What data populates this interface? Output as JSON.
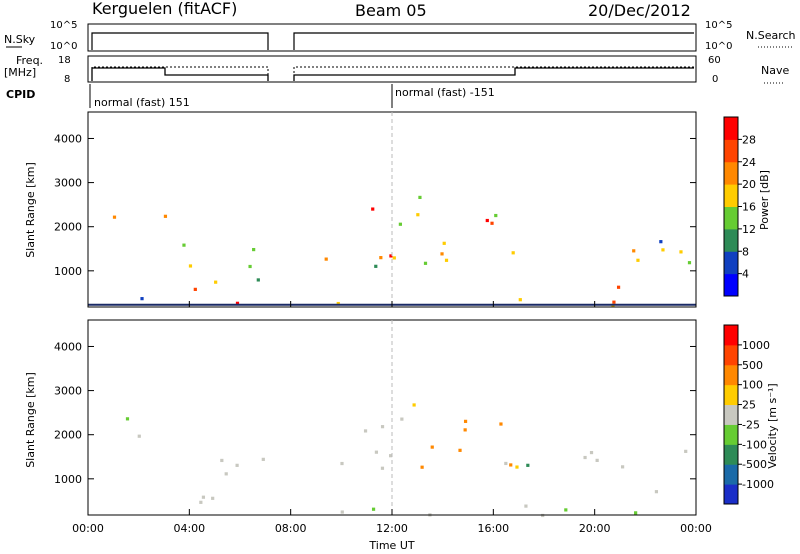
{
  "header": {
    "station": "Kerguelen (fitACF)",
    "beam": "Beam 05",
    "date": "20/Dec/2012"
  },
  "status_panels": {
    "nsky": {
      "label": "N.Sky",
      "ticks": [
        "10^5",
        "10^0"
      ]
    },
    "nsearch": {
      "label": "N.Search",
      "ticks": [
        "10^5",
        "10^0"
      ]
    },
    "freq": {
      "label_line1": "Freq.",
      "label_line2": "[MHz]",
      "ticks": [
        "18",
        "8"
      ]
    },
    "nave": {
      "label": "Nave",
      "ticks": [
        "60",
        "0"
      ]
    },
    "cpid": {
      "label": "CPID",
      "modes": [
        {
          "text": "normal (fast) 151",
          "start_hour": 0
        },
        {
          "text": "normal (fast) -151",
          "start_hour": 12
        }
      ]
    }
  },
  "chart_data": [
    {
      "type": "heatmap",
      "name": "power",
      "xlabel": "",
      "ylabel": "Slant Range [km]",
      "xlim": [
        0,
        24
      ],
      "ylim": [
        180,
        4600
      ],
      "yticks": [
        1000,
        2000,
        3000,
        4000
      ],
      "data_gap_hours": [
        7.2,
        8.1
      ],
      "scatter_bands": [
        {
          "t0": 0.0,
          "t1": 1.5,
          "r0": 2100,
          "r1": 2600
        },
        {
          "t0": 1.5,
          "t1": 3.0,
          "r0": 2000,
          "r1": 2400
        },
        {
          "t0": 3.0,
          "t1": 7.2,
          "r0": 1000,
          "r1": 1700
        },
        {
          "t0": 3.0,
          "t1": 7.2,
          "r0": 450,
          "r1": 900
        },
        {
          "t0": 8.1,
          "t1": 12.0,
          "r0": 1000,
          "r1": 1800
        },
        {
          "t0": 10.5,
          "t1": 13.5,
          "r0": 2000,
          "r1": 3000
        },
        {
          "t0": 12.0,
          "t1": 17.0,
          "r0": 1100,
          "r1": 1900
        },
        {
          "t0": 14.5,
          "t1": 17.0,
          "r0": 1800,
          "r1": 2500
        },
        {
          "t0": 17.0,
          "t1": 24.0,
          "r0": 1100,
          "r1": 1700
        },
        {
          "t0": 20.5,
          "t1": 22.5,
          "r0": 550,
          "r1": 750
        },
        {
          "t0": 0.0,
          "t1": 24.0,
          "r0": 200,
          "r1": 420
        }
      ],
      "colorbar": {
        "label": "Power [dB]",
        "ticks": [
          "28",
          "24",
          "20",
          "16",
          "12",
          "8",
          "4"
        ],
        "colors": [
          "#0000ff",
          "#1040c0",
          "#2e8b57",
          "#66cc33",
          "#ffcc00",
          "#ff8800",
          "#ff4400",
          "#ff0000"
        ]
      }
    },
    {
      "type": "heatmap",
      "name": "velocity",
      "xlabel": "Time UT",
      "ylabel": "Slant Range [km]",
      "xlim": [
        0,
        24
      ],
      "ylim": [
        180,
        4600
      ],
      "xticks": [
        "00:00",
        "04:00",
        "08:00",
        "12:00",
        "16:00",
        "20:00",
        "00:00"
      ],
      "yticks": [
        1000,
        2000,
        3000,
        4000
      ],
      "colorbar": {
        "label": "Velocity [m s⁻¹]",
        "ticks": [
          "1000",
          "500",
          "100",
          "25",
          "-25",
          "-100",
          "-500",
          "-1000"
        ],
        "colors": [
          "#1a2ec8",
          "#1a6aa8",
          "#2e8b57",
          "#66cc33",
          "#c8c8c0",
          "#ffcc00",
          "#ff8800",
          "#ff4400",
          "#ff0000"
        ]
      }
    }
  ]
}
